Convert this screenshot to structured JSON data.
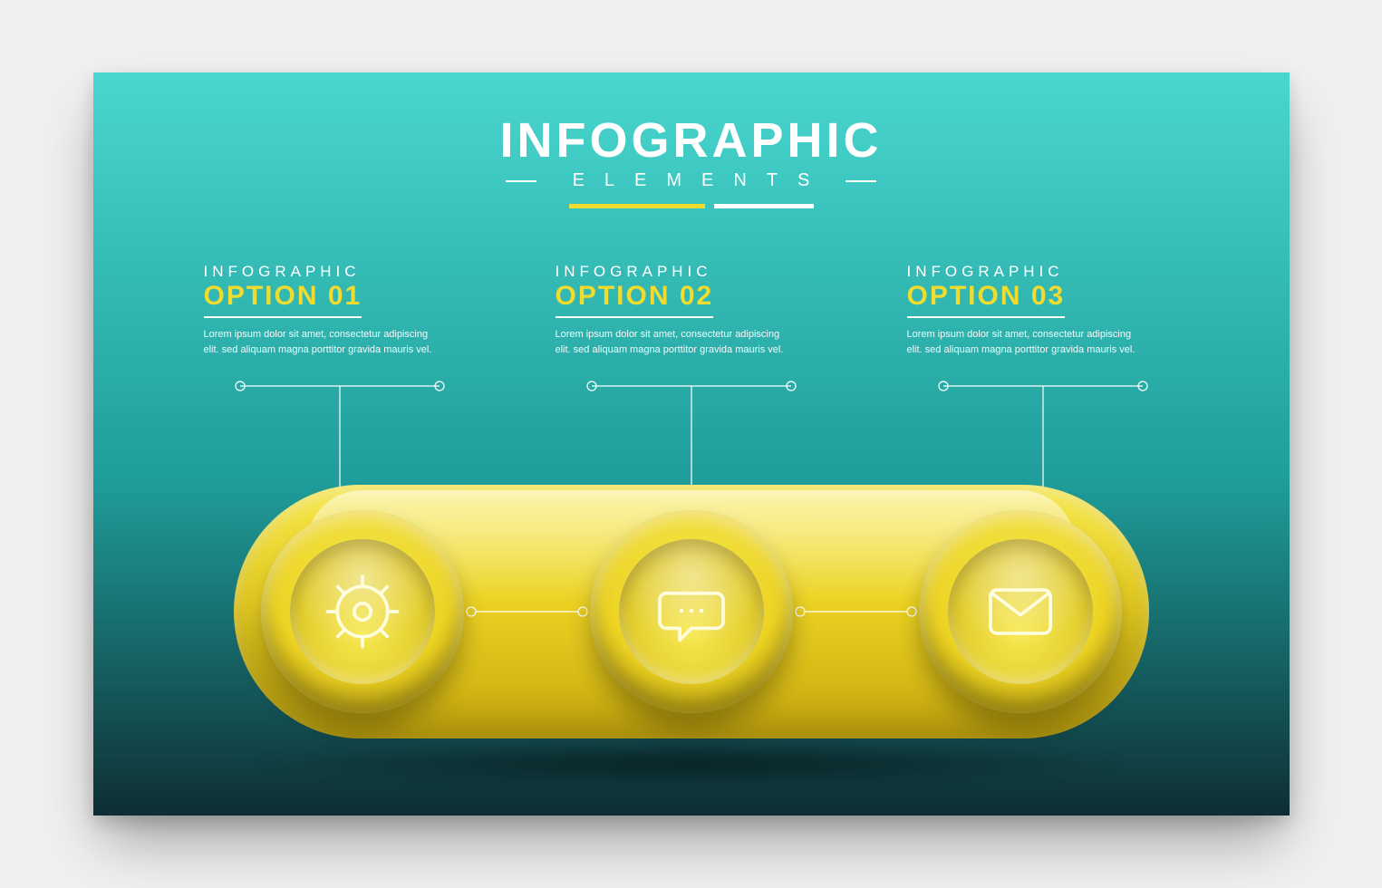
{
  "canvas": {
    "background_gradient": {
      "top": "#49d7cf",
      "mid": "#1f9d9a",
      "bottom": "#0e2e33"
    }
  },
  "header": {
    "title": "INFOGRAPHIC",
    "subtitle": "ELEMENTS",
    "title_color": "#ffffff",
    "title_fontsize": 54,
    "subtitle_fontsize": 20,
    "subtitle_letterspacing": 22,
    "rule_color": "#ffffff",
    "bars": [
      {
        "width": 150,
        "color": "#f0db2f"
      },
      {
        "width": 110,
        "color": "#ffffff"
      }
    ]
  },
  "options": [
    {
      "label": "INFOGRAPHIC",
      "title": "OPTION 01",
      "body": "Lorem ipsum dolor sit amet, consectetur adipiscing elit. sed aliquam magna porttitor gravida mauris vel.",
      "title_color": "#f0db2f",
      "label_color": "#ffffff",
      "body_color": "#ffffff",
      "underline_color": "#ffffff",
      "underline_width": 2,
      "icon": "gear"
    },
    {
      "label": "INFOGRAPHIC",
      "title": "OPTION 02",
      "body": "Lorem ipsum dolor sit amet, consectetur adipiscing elit. sed aliquam magna porttitor gravida mauris vel.",
      "title_color": "#f0db2f",
      "label_color": "#ffffff",
      "body_color": "#ffffff",
      "underline_color": "#ffffff",
      "underline_width": 2,
      "icon": "chat"
    },
    {
      "label": "INFOGRAPHIC",
      "title": "OPTION 03",
      "body": "Lorem ipsum dolor sit amet, consectetur adipiscing elit. sed aliquam magna porttitor gravida mauris vel.",
      "title_color": "#f0db2f",
      "label_color": "#ffffff",
      "body_color": "#ffffff",
      "underline_color": "#ffffff",
      "underline_width": 2,
      "icon": "mail"
    }
  ],
  "capsule": {
    "fill_light": "#f7e84e",
    "fill_mid": "#ecd323",
    "fill_dark": "#c7a80e",
    "button_ring_shadow": "#a88c06",
    "button_face_light": "#f7e84e",
    "button_face_dark": "#d2b613",
    "icon_stroke": "#fffde0",
    "icon_stroke_width": 4,
    "connector_color": "#ffffff",
    "connector_dot_radius": 5
  },
  "connectors": {
    "stroke": "#ffffff",
    "stroke_width": 1.2,
    "dot_radius": 5,
    "dot_fill": "none"
  }
}
